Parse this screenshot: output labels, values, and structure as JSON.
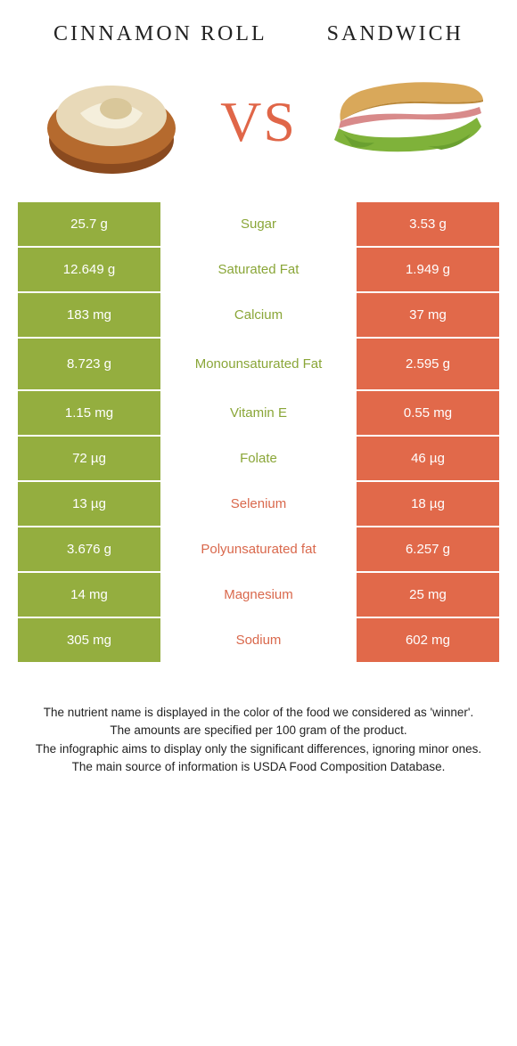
{
  "colors": {
    "green": "#94ae3f",
    "orange": "#e1694a",
    "green_text": "#8aa638",
    "orange_text": "#d9684c"
  },
  "foods": {
    "left": {
      "title": "Cinnamon Roll"
    },
    "right": {
      "title": "Sandwich"
    }
  },
  "vs_label": "VS",
  "rows": [
    {
      "left": "25.7 g",
      "label": "Sugar",
      "right": "3.53 g",
      "winner": "left"
    },
    {
      "left": "12.649 g",
      "label": "Saturated Fat",
      "right": "1.949 g",
      "winner": "left"
    },
    {
      "left": "183 mg",
      "label": "Calcium",
      "right": "37 mg",
      "winner": "left"
    },
    {
      "left": "8.723 g",
      "label": "Monounsaturated Fat",
      "right": "2.595 g",
      "winner": "left",
      "tall": true
    },
    {
      "left": "1.15 mg",
      "label": "Vitamin E",
      "right": "0.55 mg",
      "winner": "left"
    },
    {
      "left": "72 µg",
      "label": "Folate",
      "right": "46 µg",
      "winner": "left"
    },
    {
      "left": "13 µg",
      "label": "Selenium",
      "right": "18 µg",
      "winner": "right"
    },
    {
      "left": "3.676 g",
      "label": "Polyunsaturated fat",
      "right": "6.257 g",
      "winner": "right"
    },
    {
      "left": "14 mg",
      "label": "Magnesium",
      "right": "25 mg",
      "winner": "right"
    },
    {
      "left": "305 mg",
      "label": "Sodium",
      "right": "602 mg",
      "winner": "right"
    }
  ],
  "footnotes": [
    "The nutrient name is displayed in the color of the food we considered as 'winner'.",
    "The amounts are specified per 100 gram of the product.",
    "The infographic aims to display only the significant differences, ignoring minor ones.",
    "The main source of information is USDA Food Composition Database."
  ]
}
